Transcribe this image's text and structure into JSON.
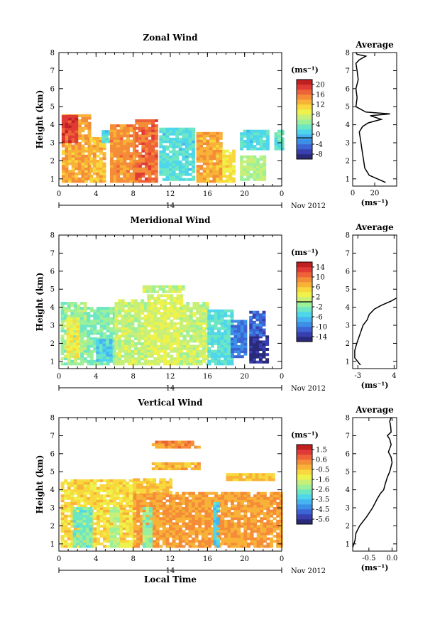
{
  "chart_data": [
    {
      "type": "heatmap",
      "title": "Zonal Wind",
      "ylabel": "Height (km)",
      "xlim": [
        0,
        24
      ],
      "ylim": [
        0.6,
        8
      ],
      "x_ticks": [
        "0",
        "4",
        "8",
        "12",
        "16",
        "20",
        "0"
      ],
      "y_ticks": [
        "1",
        "2",
        "3",
        "4",
        "5",
        "6",
        "7",
        "8"
      ],
      "date_day": "14",
      "date_label": "Nov 2012",
      "colorbar": {
        "unit": "(ms⁻¹)",
        "min": -8,
        "max": 22,
        "ticks": [
          "20",
          "16",
          "12",
          "8",
          "4",
          "0",
          "-4",
          "-8"
        ],
        "zero_line": 0
      },
      "regions": [
        {
          "x": [
            0.3,
            3.3
          ],
          "y": [
            0.8,
            4.5
          ],
          "v": 14
        },
        {
          "x": [
            0.3,
            1.8
          ],
          "y": [
            3.0,
            4.5
          ],
          "v": 19
        },
        {
          "x": [
            3.3,
            5.0
          ],
          "y": [
            0.8,
            3.2
          ],
          "v": 13
        },
        {
          "x": [
            4.6,
            5.4
          ],
          "y": [
            3.0,
            3.6
          ],
          "v": 3
        },
        {
          "x": [
            5.5,
            8.0
          ],
          "y": [
            0.8,
            4.0
          ],
          "v": 15
        },
        {
          "x": [
            8.2,
            10.6
          ],
          "y": [
            0.8,
            4.3
          ],
          "v": 17
        },
        {
          "x": [
            10.8,
            14.6
          ],
          "y": [
            0.9,
            3.8
          ],
          "v": 3
        },
        {
          "x": [
            14.8,
            17.4
          ],
          "y": [
            0.8,
            3.6
          ],
          "v": 14
        },
        {
          "x": [
            17.6,
            18.8
          ],
          "y": [
            0.8,
            2.6
          ],
          "v": 11
        },
        {
          "x": [
            19.5,
            22.0
          ],
          "y": [
            0.9,
            2.2
          ],
          "v": 7
        },
        {
          "x": [
            19.5,
            22.5
          ],
          "y": [
            2.6,
            3.6
          ],
          "v": 3
        },
        {
          "x": [
            23.2,
            24.0
          ],
          "y": [
            2.6,
            3.6
          ],
          "v": 4
        }
      ],
      "profile": {
        "title": "Average",
        "xlim": [
          0,
          40
        ],
        "x_ticks": [
          "0",
          "20"
        ],
        "unit": "(ms⁻¹)",
        "x": [
          30,
          15,
          11,
          10,
          9,
          8,
          7,
          6,
          9,
          14,
          26,
          16,
          34,
          12,
          3,
          4,
          3,
          5,
          4,
          3,
          6,
          12,
          4,
          3
        ],
        "y": [
          0.8,
          1.2,
          1.6,
          2.0,
          2.4,
          2.8,
          3.2,
          3.6,
          3.9,
          4.1,
          4.3,
          4.5,
          4.6,
          4.7,
          5.0,
          5.5,
          6.0,
          6.5,
          7.0,
          7.4,
          7.6,
          7.8,
          7.9,
          8.0
        ]
      }
    },
    {
      "type": "heatmap",
      "title": "Meridional Wind",
      "ylabel": "Height (km)",
      "xlim": [
        0,
        24
      ],
      "ylim": [
        0.6,
        8
      ],
      "x_ticks": [
        "0",
        "4",
        "8",
        "12",
        "16",
        "20",
        "0"
      ],
      "y_ticks": [
        "1",
        "2",
        "3",
        "4",
        "5",
        "6",
        "7",
        "8"
      ],
      "date_day": "14",
      "date_label": "Nov 2012",
      "colorbar": {
        "unit": "(ms⁻¹)",
        "min": -16,
        "max": 16,
        "ticks": [
          "14",
          "10",
          "6",
          "2",
          "-2",
          "-6",
          "-10",
          "-14"
        ],
        "zero_line": 0
      },
      "regions": [
        {
          "x": [
            0.2,
            3.0
          ],
          "y": [
            0.8,
            4.3
          ],
          "v": -1
        },
        {
          "x": [
            0.8,
            2.2
          ],
          "y": [
            1.2,
            3.4
          ],
          "v": 3
        },
        {
          "x": [
            3.0,
            6.0
          ],
          "y": [
            0.8,
            4.0
          ],
          "v": -2
        },
        {
          "x": [
            4.0,
            5.5
          ],
          "y": [
            1.0,
            2.2
          ],
          "v": -5
        },
        {
          "x": [
            6.0,
            9.5
          ],
          "y": [
            0.8,
            4.4
          ],
          "v": 1
        },
        {
          "x": [
            9.5,
            13.0
          ],
          "y": [
            0.8,
            4.6
          ],
          "v": 2
        },
        {
          "x": [
            13.0,
            16.0
          ],
          "y": [
            0.8,
            4.3
          ],
          "v": 1
        },
        {
          "x": [
            16.0,
            18.5
          ],
          "y": [
            0.8,
            3.8
          ],
          "v": -4
        },
        {
          "x": [
            18.5,
            20.0
          ],
          "y": [
            1.2,
            3.2
          ],
          "v": -10
        },
        {
          "x": [
            20.5,
            22.5
          ],
          "y": [
            0.9,
            2.4
          ],
          "v": -14
        },
        {
          "x": [
            20.5,
            22.0
          ],
          "y": [
            2.4,
            3.8
          ],
          "v": -11
        },
        {
          "x": [
            9.0,
            13.5
          ],
          "y": [
            4.8,
            5.2
          ],
          "v": 1
        }
      ],
      "profile": {
        "title": "Average",
        "xlim": [
          -4,
          4.5
        ],
        "x_ticks": [
          "-3",
          "4"
        ],
        "unit": "(ms⁻¹)",
        "x": [
          -2.5,
          -3.6,
          -3.6,
          -3.2,
          -2.6,
          -2.0,
          -1.2,
          -0.8,
          0.2,
          1.5,
          3.5,
          4.4
        ],
        "y": [
          0.8,
          1.2,
          1.6,
          2.0,
          2.5,
          3.0,
          3.3,
          3.6,
          3.9,
          4.1,
          4.35,
          4.5
        ]
      }
    },
    {
      "type": "heatmap",
      "title": "Vertical Wind",
      "ylabel": "Height (km)",
      "xlabel": "Local Time",
      "xlim": [
        0,
        24
      ],
      "ylim": [
        0.6,
        8
      ],
      "x_ticks": [
        "0",
        "4",
        "8",
        "12",
        "16",
        "20",
        "0"
      ],
      "y_ticks": [
        "1",
        "2",
        "3",
        "4",
        "5",
        "6",
        "7",
        "8"
      ],
      "date_day": "14",
      "date_label": "Nov 2012",
      "colorbar": {
        "unit": "(ms⁻¹)",
        "min": -6.0,
        "max": 2.0,
        "ticks": [
          "1.5",
          "0.6",
          "-0.5",
          "-1.6",
          "-2.6",
          "-3.5",
          "-4.5",
          "-5.6"
        ]
      },
      "regions": [
        {
          "x": [
            0.2,
            8.0
          ],
          "y": [
            0.8,
            4.5
          ],
          "v": -0.8
        },
        {
          "x": [
            8.0,
            24.0
          ],
          "y": [
            0.8,
            3.8
          ],
          "v": 0.0
        },
        {
          "x": [
            8.0,
            12.0
          ],
          "y": [
            3.8,
            4.5
          ],
          "v": -0.6
        },
        {
          "x": [
            1.5,
            3.5
          ],
          "y": [
            0.8,
            3.0
          ],
          "v": -2.6
        },
        {
          "x": [
            5.5,
            6.5
          ],
          "y": [
            0.8,
            3.0
          ],
          "v": -2.0
        },
        {
          "x": [
            9.0,
            10.0
          ],
          "y": [
            0.8,
            3.0
          ],
          "v": -2.2
        },
        {
          "x": [
            16.6,
            17.3
          ],
          "y": [
            0.8,
            3.3
          ],
          "v": -3.4
        },
        {
          "x": [
            10.0,
            15.0
          ],
          "y": [
            5.1,
            5.5
          ],
          "v": -0.3
        },
        {
          "x": [
            10.0,
            15.0
          ],
          "y": [
            6.3,
            6.6
          ],
          "v": 0.2
        },
        {
          "x": [
            18.0,
            23.0
          ],
          "y": [
            4.5,
            4.8
          ],
          "v": -0.5
        }
      ],
      "profile": {
        "title": "Average",
        "xlim": [
          -0.85,
          0.1
        ],
        "x_ticks": [
          "-0.5",
          "0.0"
        ],
        "unit": "(ms⁻¹)",
        "x": [
          -0.85,
          -0.8,
          -0.78,
          -0.7,
          -0.55,
          -0.42,
          -0.32,
          -0.25,
          -0.18,
          -0.15,
          -0.1,
          -0.05,
          0.0,
          -0.02,
          -0.08,
          -0.02,
          -0.05,
          -0.1,
          -0.02,
          -0.03,
          -0.05,
          -0.02
        ],
        "y": [
          0.8,
          1.2,
          1.6,
          2.0,
          2.5,
          3.0,
          3.5,
          3.8,
          4.0,
          4.3,
          4.7,
          5.0,
          5.5,
          5.8,
          6.1,
          6.5,
          6.8,
          7.0,
          7.2,
          7.5,
          7.8,
          8.0
        ]
      }
    }
  ]
}
